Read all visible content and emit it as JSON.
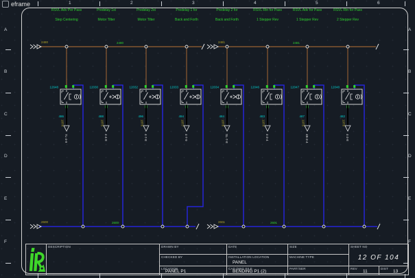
{
  "window": {
    "title": "eframe"
  },
  "colors": {
    "background": "#161c24",
    "bus_top": "#9a6233",
    "bus_bottom": "#2525d8",
    "label_green": "#2fd42f",
    "label_cyan": "#00cfcf",
    "label_olive": "#b3a226",
    "line_white": "#e8e8e8",
    "logo_green": "#3fd62a"
  },
  "ruler": {
    "columns": [
      "1",
      "2",
      "3",
      "4",
      "5",
      "6"
    ],
    "rows": [
      "A",
      "B",
      "C",
      "D",
      "E",
      "F"
    ]
  },
  "headers": [
    {
      "line1": "RSVL Adv Per Pass",
      "line2": "Step Centering"
    },
    {
      "line1": "Predelay 1st",
      "line2": "Motor Tilter"
    },
    {
      "line1": "Predelay 2st",
      "line2": "Motor Tilter"
    },
    {
      "line1": "Predelay 1 for",
      "line2": "Back and Forth"
    },
    {
      "line1": "Predelay 2 for",
      "line2": "Back and Forth"
    },
    {
      "line1": "RSVL Rtn for Pass",
      "line2": "1 Stepper Rev"
    },
    {
      "line1": "RSVL Adv for Pass",
      "line2": "1 Stepper Rev"
    },
    {
      "line1": "RSVL Rtn for Pass",
      "line2": "2 Stepper Rev"
    }
  ],
  "buses": {
    "top": {
      "left_tag": "2480",
      "left_green": "2480",
      "mid_tag": "2481",
      "right_green": "2481"
    },
    "bottom": {
      "left_tag": "2600",
      "left_green": "2600",
      "mid_tag": "2601",
      "right_green": "2601"
    }
  },
  "branches": [
    {
      "wire_no": "12648",
      "symbol": "solenoid",
      "cyan": "486",
      "olive": "18T4",
      "connector": "7L-4-9"
    },
    {
      "wire_no": "12030",
      "symbol": "flow",
      "cyan": "488",
      "olive": "18T5",
      "connector": "4-4-8"
    },
    {
      "wire_no": "12032",
      "symbol": "flow",
      "cyan": "496",
      "olive": "18T6",
      "connector": "4-7-8"
    },
    {
      "wire_no": "12033",
      "symbol": "flow",
      "cyan": "494",
      "olive": "18T7",
      "connector": "4-7-9"
    },
    {
      "wire_no": "12034",
      "symbol": "flow",
      "cyan": "484",
      "olive": "18T8",
      "connector": "SL-7-8"
    },
    {
      "wire_no": "12046",
      "symbol": "solenoid",
      "cyan": "483",
      "olive": "19T4",
      "connector": "4-3-4"
    },
    {
      "wire_no": "12047",
      "symbol": "solenoid",
      "cyan": "487",
      "olive": "19T5",
      "connector": "4B-3-4"
    },
    {
      "wire_no": "12048",
      "symbol": "solenoid",
      "cyan": "482",
      "olive": "19T6",
      "connector": "4-3-8"
    }
  ],
  "titleblock": {
    "description_label": "DESCRIPTION",
    "drawn_by_label": "DRAWN BY",
    "date_label": "DATE",
    "size_label": "SIZE",
    "sheet_no_label": "SHEET NO",
    "sheet_no_value": "12 OF 104",
    "checked_by_label": "CHECKED BY",
    "install_label": "INSTALLATION LOCATION",
    "install_value": "PANEL",
    "machine_label": "MACHINE TYPE",
    "location_label": "LOCATION",
    "location_value": "PANEL P1",
    "cad_label": "CAD DWG FILE",
    "cad_value": "BENDING P1 (2)",
    "partser_label": "PART/SER",
    "rev_label": "REV",
    "rev_value": "11",
    "dist_label": "DIST",
    "dist_value": "13"
  },
  "logo": {
    "monogram": "iR"
  }
}
